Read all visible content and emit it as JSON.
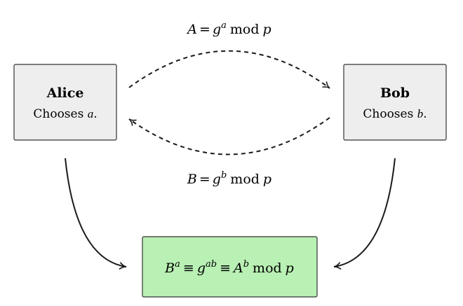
{
  "nodes": {
    "alice": {
      "name": "Alice",
      "action_prefix": "Chooses ",
      "action_var": "a",
      "action_suffix": ".",
      "fill": "#eeeeee",
      "stroke": "#333333"
    },
    "bob": {
      "name": "Bob",
      "action_prefix": "Chooses ",
      "action_var": "b",
      "action_suffix": ".",
      "fill": "#eeeeee",
      "stroke": "#333333"
    },
    "shared": {
      "base1": "B",
      "exp1": "a",
      "equiv": "≡",
      "base2": "g",
      "exp2": "ab",
      "base3": "A",
      "exp3": "b",
      "mod": "mod",
      "modulus": "p",
      "fill": "#b9f0b4",
      "stroke": "#333333"
    }
  },
  "edges": {
    "alice_to_bob": {
      "lhs": "A",
      "eq": "=",
      "base": "g",
      "exp": "a",
      "mod": "mod",
      "modulus": "p"
    },
    "bob_to_alice": {
      "lhs": "B",
      "eq": "=",
      "base": "g",
      "exp": "b",
      "mod": "mod",
      "modulus": "p"
    }
  },
  "colors": {
    "arrow": "#1a1a1a",
    "text": "#1a1a1a"
  }
}
